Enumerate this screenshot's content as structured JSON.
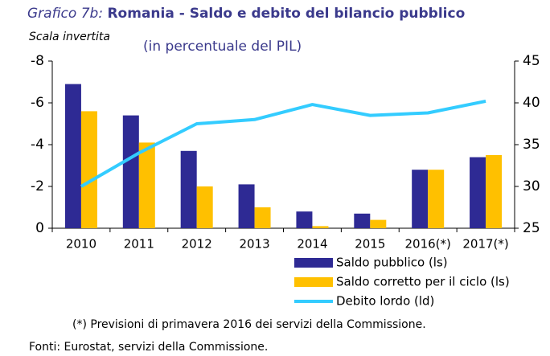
{
  "chart_data": {
    "type": "bar",
    "title_prefix": "Grafico 7b:",
    "title": "Romania - Saldo e debito del bilancio pubblico",
    "subtitle": "(in percentuale del PIL)",
    "annotation": "Scala invertita",
    "categories": [
      "2010",
      "2011",
      "2012",
      "2013",
      "2014",
      "2015",
      "2016(*)",
      "2017(*)"
    ],
    "series": [
      {
        "name": "Saldo pubblico (ls)",
        "type": "bar",
        "color": "#2e2a94",
        "values": [
          -6.9,
          -5.4,
          -3.7,
          -2.1,
          -0.8,
          -0.7,
          -2.8,
          -3.4
        ]
      },
      {
        "name": "Saldo corretto per il ciclo (ls)",
        "type": "bar",
        "color": "#ffc000",
        "values": [
          -5.6,
          -4.1,
          -2.0,
          -1.0,
          -0.1,
          -0.4,
          -2.8,
          -3.5
        ]
      },
      {
        "name": "Debito lordo (ld)",
        "type": "line",
        "axis": "y2",
        "color": "#33ccff",
        "values": [
          30.0,
          34.0,
          37.5,
          38.0,
          39.8,
          38.5,
          38.8,
          40.2
        ]
      }
    ],
    "ylim": [
      0,
      -8
    ],
    "yticks": [
      -8,
      -6,
      -4,
      -2,
      0
    ],
    "y2lim": [
      25,
      45
    ],
    "y2ticks": [
      25,
      30,
      35,
      40,
      45
    ],
    "footnote": "(*) Previsioni di primavera 2016 dei servizi della Commissione.",
    "source": "Fonti: Eurostat, servizi della Commissione."
  }
}
